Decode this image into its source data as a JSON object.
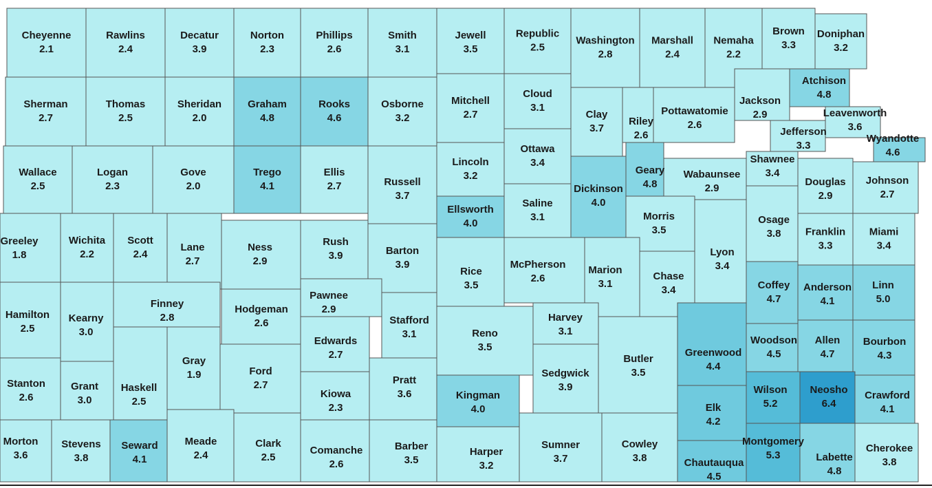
{
  "counties": [
    {
      "name": "Cheyenne",
      "value": 2.1,
      "color": "#b6eef2"
    },
    {
      "name": "Rawlins",
      "value": 2.4,
      "color": "#b6eef2"
    },
    {
      "name": "Decatur",
      "value": 3.9,
      "color": "#b6eef2"
    },
    {
      "name": "Norton",
      "value": 2.3,
      "color": "#b6eef2"
    },
    {
      "name": "Phillips",
      "value": 2.6,
      "color": "#b6eef2"
    },
    {
      "name": "Smith",
      "value": 3.1,
      "color": "#b6eef2"
    },
    {
      "name": "Jewell",
      "value": 3.5,
      "color": "#b6eef2"
    },
    {
      "name": "Republic",
      "value": 2.5,
      "color": "#b6eef2"
    },
    {
      "name": "Washington",
      "value": 2.8,
      "color": "#b6eef2"
    },
    {
      "name": "Marshall",
      "value": 2.4,
      "color": "#b6eef2"
    },
    {
      "name": "Nemaha",
      "value": 2.2,
      "color": "#b6eef2"
    },
    {
      "name": "Brown",
      "value": 3.3,
      "color": "#b6eef2"
    },
    {
      "name": "Doniphan",
      "value": 3.2,
      "color": "#b6eef2"
    },
    {
      "name": "Sherman",
      "value": 2.7,
      "color": "#b6eef2"
    },
    {
      "name": "Thomas",
      "value": 2.5,
      "color": "#b6eef2"
    },
    {
      "name": "Sheridan",
      "value": 2.0,
      "value_label": "2.0",
      "color": "#b6eef2"
    },
    {
      "name": "Graham",
      "value": 4.8,
      "color": "#86d6e4"
    },
    {
      "name": "Rooks",
      "value": 4.6,
      "color": "#86d6e4"
    },
    {
      "name": "Osborne",
      "value": 3.2,
      "color": "#b6eef2"
    },
    {
      "name": "Mitchell",
      "value": 2.7,
      "color": "#b6eef2"
    },
    {
      "name": "Cloud",
      "value": 3.1,
      "color": "#b6eef2"
    },
    {
      "name": "Clay",
      "value": 3.7,
      "color": "#b6eef2"
    },
    {
      "name": "Riley",
      "value": 2.6,
      "color": "#b6eef2"
    },
    {
      "name": "Pottawatomie",
      "value": 2.6,
      "color": "#b6eef2"
    },
    {
      "name": "Jackson",
      "value": 2.9,
      "color": "#b6eef2"
    },
    {
      "name": "Atchison",
      "value": 4.8,
      "color": "#86d6e4"
    },
    {
      "name": "Leavenworth",
      "value": 3.6,
      "color": "#b6eef2"
    },
    {
      "name": "Jefferson",
      "value": 3.3,
      "color": "#b6eef2"
    },
    {
      "name": "Wyandotte",
      "value": 4.6,
      "color": "#86d6e4"
    },
    {
      "name": "Wallace",
      "value": 2.5,
      "color": "#b6eef2"
    },
    {
      "name": "Logan",
      "value": 2.3,
      "color": "#b6eef2"
    },
    {
      "name": "Gove",
      "value": 2.0,
      "value_label": "2.0",
      "color": "#b6eef2"
    },
    {
      "name": "Trego",
      "value": 4.1,
      "color": "#86d6e4"
    },
    {
      "name": "Ellis",
      "value": 2.7,
      "color": "#b6eef2"
    },
    {
      "name": "Russell",
      "value": 3.7,
      "color": "#b6eef2"
    },
    {
      "name": "Lincoln",
      "value": 3.2,
      "color": "#b6eef2"
    },
    {
      "name": "Ottawa",
      "value": 3.4,
      "color": "#b6eef2"
    },
    {
      "name": "Dickinson",
      "value": 4.0,
      "value_label": "4.0",
      "color": "#86d6e4"
    },
    {
      "name": "Geary",
      "value": 4.8,
      "color": "#86d6e4"
    },
    {
      "name": "Wabaunsee",
      "value": 2.9,
      "color": "#b6eef2"
    },
    {
      "name": "Shawnee",
      "value": 3.4,
      "color": "#b6eef2"
    },
    {
      "name": "Douglas",
      "value": 2.9,
      "color": "#b6eef2"
    },
    {
      "name": "Johnson",
      "value": 2.7,
      "color": "#b6eef2"
    },
    {
      "name": "Ellsworth",
      "value": 4.0,
      "value_label": "4.0",
      "color": "#86d6e4"
    },
    {
      "name": "Saline",
      "value": 3.1,
      "color": "#b6eef2"
    },
    {
      "name": "Morris",
      "value": 3.5,
      "color": "#b6eef2"
    },
    {
      "name": "Osage",
      "value": 3.8,
      "color": "#b6eef2"
    },
    {
      "name": "Franklin",
      "value": 3.3,
      "color": "#b6eef2"
    },
    {
      "name": "Miami",
      "value": 3.4,
      "color": "#b6eef2"
    },
    {
      "name": "Greeley",
      "value": 1.8,
      "color": "#b6eef2"
    },
    {
      "name": "Wichita",
      "value": 2.2,
      "color": "#b6eef2"
    },
    {
      "name": "Scott",
      "value": 2.4,
      "color": "#b6eef2"
    },
    {
      "name": "Lane",
      "value": 2.7,
      "color": "#b6eef2"
    },
    {
      "name": "Ness",
      "value": 2.9,
      "color": "#b6eef2"
    },
    {
      "name": "Rush",
      "value": 3.9,
      "color": "#b6eef2"
    },
    {
      "name": "Barton",
      "value": 3.9,
      "color": "#b6eef2"
    },
    {
      "name": "Rice",
      "value": 3.5,
      "color": "#b6eef2"
    },
    {
      "name": "McPherson",
      "value": 2.6,
      "color": "#b6eef2"
    },
    {
      "name": "Marion",
      "value": 3.1,
      "color": "#b6eef2"
    },
    {
      "name": "Chase",
      "value": 3.4,
      "color": "#b6eef2"
    },
    {
      "name": "Lyon",
      "value": 3.4,
      "color": "#b6eef2"
    },
    {
      "name": "Coffey",
      "value": 4.7,
      "color": "#86d6e4"
    },
    {
      "name": "Anderson",
      "value": 4.1,
      "color": "#86d6e4"
    },
    {
      "name": "Linn",
      "value": 5.0,
      "value_label": "5.0",
      "color": "#86d6e4"
    },
    {
      "name": "Hamilton",
      "value": 2.5,
      "color": "#b6eef2"
    },
    {
      "name": "Kearny",
      "value": 3.0,
      "value_label": "3.0",
      "color": "#b6eef2"
    },
    {
      "name": "Finney",
      "value": 2.8,
      "color": "#b6eef2"
    },
    {
      "name": "Hodgeman",
      "value": 2.6,
      "color": "#b6eef2"
    },
    {
      "name": "Pawnee",
      "value": 2.9,
      "color": "#b6eef2"
    },
    {
      "name": "Stafford",
      "value": 3.1,
      "color": "#b6eef2"
    },
    {
      "name": "Reno",
      "value": 3.5,
      "color": "#b6eef2"
    },
    {
      "name": "Harvey",
      "value": 3.1,
      "color": "#b6eef2"
    },
    {
      "name": "Edwards",
      "value": 2.7,
      "color": "#b6eef2"
    },
    {
      "name": "Gray",
      "value": 1.9,
      "color": "#b6eef2"
    },
    {
      "name": "Ford",
      "value": 2.7,
      "color": "#b6eef2"
    },
    {
      "name": "Sedgwick",
      "value": 3.9,
      "color": "#b6eef2"
    },
    {
      "name": "Butler",
      "value": 3.5,
      "color": "#b6eef2"
    },
    {
      "name": "Greenwood",
      "value": 4.4,
      "color": "#6fcade"
    },
    {
      "name": "Woodson",
      "value": 4.5,
      "color": "#86d6e4"
    },
    {
      "name": "Allen",
      "value": 4.7,
      "color": "#86d6e4"
    },
    {
      "name": "Bourbon",
      "value": 4.3,
      "color": "#86d6e4"
    },
    {
      "name": "Stanton",
      "value": 2.6,
      "color": "#b6eef2"
    },
    {
      "name": "Grant",
      "value": 3.0,
      "value_label": "3.0",
      "color": "#b6eef2"
    },
    {
      "name": "Haskell",
      "value": 2.5,
      "color": "#b6eef2"
    },
    {
      "name": "Kiowa",
      "value": 2.3,
      "color": "#b6eef2"
    },
    {
      "name": "Pratt",
      "value": 3.6,
      "color": "#b6eef2"
    },
    {
      "name": "Kingman",
      "value": 4.0,
      "value_label": "4.0",
      "color": "#86d6e4"
    },
    {
      "name": "Elk",
      "value": 4.2,
      "color": "#6fcade"
    },
    {
      "name": "Wilson",
      "value": 5.2,
      "color": "#55bcd8"
    },
    {
      "name": "Neosho",
      "value": 6.4,
      "color": "#2e9ecd"
    },
    {
      "name": "Crawford",
      "value": 4.1,
      "color": "#86d6e4"
    },
    {
      "name": "Morton",
      "value": 3.6,
      "color": "#b6eef2"
    },
    {
      "name": "Stevens",
      "value": 3.8,
      "color": "#b6eef2"
    },
    {
      "name": "Seward",
      "value": 4.1,
      "color": "#86d6e4"
    },
    {
      "name": "Meade",
      "value": 2.4,
      "color": "#b6eef2"
    },
    {
      "name": "Clark",
      "value": 2.5,
      "color": "#b6eef2"
    },
    {
      "name": "Comanche",
      "value": 2.6,
      "color": "#b6eef2"
    },
    {
      "name": "Barber",
      "value": 3.5,
      "color": "#b6eef2"
    },
    {
      "name": "Harper",
      "value": 3.2,
      "color": "#b6eef2"
    },
    {
      "name": "Sumner",
      "value": 3.7,
      "color": "#b6eef2"
    },
    {
      "name": "Cowley",
      "value": 3.8,
      "color": "#b6eef2"
    },
    {
      "name": "Chautauqua",
      "value": 4.5,
      "color": "#6fcade"
    },
    {
      "name": "Montgomery",
      "value": 5.3,
      "color": "#55bcd8"
    },
    {
      "name": "Labette",
      "value": 4.8,
      "color": "#86d6e4"
    },
    {
      "name": "Cherokee",
      "value": 3.8,
      "color": "#b6eef2"
    }
  ]
}
